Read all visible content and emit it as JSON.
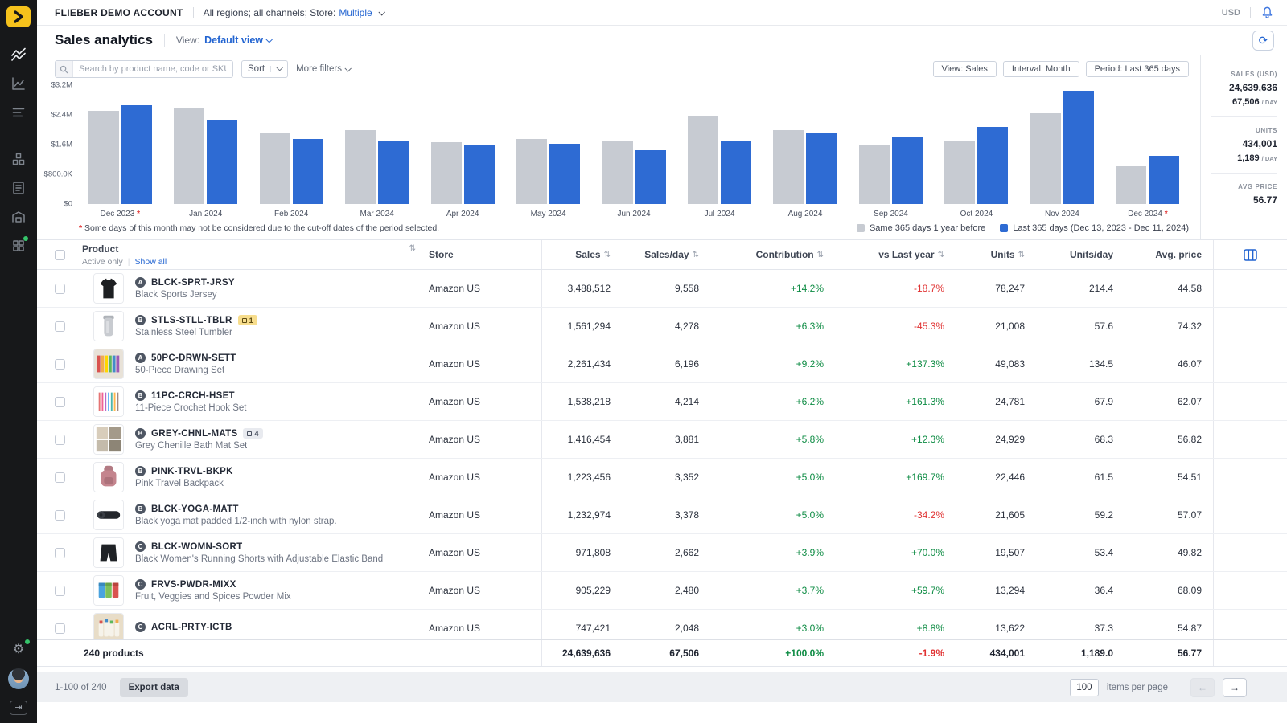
{
  "colors": {
    "accent": "#2264d1",
    "positive": "#0e8c44",
    "negative": "#e03131"
  },
  "topbar": {
    "account_name": "FLIEBER DEMO ACCOUNT",
    "scope_text": "All regions; all channels; Store:",
    "scope_value": "Multiple",
    "currency": "USD"
  },
  "titlebar": {
    "title": "Sales analytics",
    "view_label": "View:",
    "view_value": "Default view"
  },
  "filterbar": {
    "search_placeholder": "Search by product name, code or SKU",
    "sort_label": "Sort",
    "more_filters_label": "More filters",
    "chips": [
      "View: Sales",
      "Interval: Month",
      "Period: Last 365 days"
    ]
  },
  "chart_data": {
    "type": "bar",
    "categories": [
      "Dec 2023",
      "Jan 2024",
      "Feb 2024",
      "Mar 2024",
      "Apr 2024",
      "May 2024",
      "Jun 2024",
      "Jul 2024",
      "Aug 2024",
      "Sep 2024",
      "Oct 2024",
      "Nov 2024",
      "Dec 2024"
    ],
    "asterisk_categories": [
      "Dec 2023",
      "Dec 2024"
    ],
    "series": [
      {
        "name": "Same 365 days 1 year before",
        "color": "#c7cbd2",
        "values_musd": [
          2.5,
          2.6,
          1.92,
          1.98,
          1.66,
          1.75,
          1.71,
          2.35,
          1.98,
          1.6,
          1.69,
          2.45,
          1.02
        ]
      },
      {
        "name": "Last 365 days (Dec 13, 2023 - Dec 11, 2024)",
        "color": "#2e6bd3",
        "values_musd": [
          2.67,
          2.28,
          1.75,
          1.71,
          1.58,
          1.62,
          1.45,
          1.71,
          1.92,
          1.81,
          2.07,
          3.05,
          1.3
        ]
      }
    ],
    "y_ticks": [
      "$3.2M",
      "$2.4M",
      "$1.6M",
      "$800.0K",
      "$0"
    ],
    "ylim_musd": [
      0,
      3.2
    ],
    "legend_position": "bottom-right",
    "footnote": "Some days of this month may not be considered due to the cut-off dates of the period selected."
  },
  "stats": {
    "sales_label": "SALES (USD)",
    "sales_total": "24,639,636",
    "sales_per_day": "67,506",
    "per_day_suffix": "/ DAY",
    "units_label": "UNITS",
    "units_total": "434,001",
    "units_per_day": "1,189",
    "avg_price_label": "AVG PRICE",
    "avg_price": "56.77"
  },
  "table": {
    "headers": {
      "product": "Product",
      "store": "Store",
      "sales": "Sales",
      "sales_day": "Sales/day",
      "contribution": "Contribution",
      "vs_last_year": "vs Last year",
      "units": "Units",
      "units_day": "Units/day",
      "avg_price": "Avg. price"
    },
    "subheader": {
      "active_only": "Active only",
      "show_all": "Show all"
    },
    "rows": [
      {
        "grade": "A",
        "code": "BLCK-SPRT-JRSY",
        "desc": "Black Sports Jersey",
        "thumb": "shirt",
        "store": "Amazon US",
        "sales": "3,488,512",
        "sales_day": "9,558",
        "contribution": "+14.2%",
        "vs_last_year": "-18.7%",
        "units": "78,247",
        "units_day": "214.4",
        "avg_price": "44.58"
      },
      {
        "grade": "B",
        "code": "STLS-STLL-TBLR",
        "chip": {
          "style": "orange",
          "label": "1"
        },
        "desc": "Stainless Steel Tumbler",
        "thumb": "tumbler",
        "store": "Amazon US",
        "sales": "1,561,294",
        "sales_day": "4,278",
        "contribution": "+6.3%",
        "vs_last_year": "-45.3%",
        "units": "21,008",
        "units_day": "57.6",
        "avg_price": "74.32"
      },
      {
        "grade": "A",
        "code": "50PC-DRWN-SETT",
        "desc": "50-Piece Drawing Set",
        "thumb": "artset",
        "store": "Amazon US",
        "sales": "2,261,434",
        "sales_day": "6,196",
        "contribution": "+9.2%",
        "vs_last_year": "+137.3%",
        "units": "49,083",
        "units_day": "134.5",
        "avg_price": "46.07"
      },
      {
        "grade": "B",
        "code": "11PC-CRCH-HSET",
        "desc": "11-Piece Crochet Hook Set",
        "thumb": "hooks",
        "store": "Amazon US",
        "sales": "1,538,218",
        "sales_day": "4,214",
        "contribution": "+6.2%",
        "vs_last_year": "+161.3%",
        "units": "24,781",
        "units_day": "67.9",
        "avg_price": "62.07"
      },
      {
        "grade": "B",
        "code": "GREY-CHNL-MATS",
        "chip": {
          "style": "gray",
          "label": "4"
        },
        "desc": "Grey Chenille Bath Mat Set",
        "thumb": "mats",
        "store": "Amazon US",
        "sales": "1,416,454",
        "sales_day": "3,881",
        "contribution": "+5.8%",
        "vs_last_year": "+12.3%",
        "units": "24,929",
        "units_day": "68.3",
        "avg_price": "56.82"
      },
      {
        "grade": "B",
        "code": "PINK-TRVL-BKPK",
        "desc": "Pink Travel Backpack",
        "thumb": "backpack",
        "store": "Amazon US",
        "sales": "1,223,456",
        "sales_day": "3,352",
        "contribution": "+5.0%",
        "vs_last_year": "+169.7%",
        "units": "22,446",
        "units_day": "61.5",
        "avg_price": "54.51"
      },
      {
        "grade": "B",
        "code": "BLCK-YOGA-MATT",
        "desc": "Black yoga mat padded 1/2-inch with nylon strap.",
        "thumb": "yogamat",
        "store": "Amazon US",
        "sales": "1,232,974",
        "sales_day": "3,378",
        "contribution": "+5.0%",
        "vs_last_year": "-34.2%",
        "units": "21,605",
        "units_day": "59.2",
        "avg_price": "57.07"
      },
      {
        "grade": "C",
        "code": "BLCK-WOMN-SORT",
        "desc": "Black Women's Running Shorts with Adjustable Elastic Band",
        "thumb": "shorts",
        "store": "Amazon US",
        "sales": "971,808",
        "sales_day": "2,662",
        "contribution": "+3.9%",
        "vs_last_year": "+70.0%",
        "units": "19,507",
        "units_day": "53.4",
        "avg_price": "49.82"
      },
      {
        "grade": "C",
        "code": "FRVS-PWDR-MIXX",
        "desc": "Fruit, Veggies and Spices Powder Mix",
        "thumb": "cans",
        "store": "Amazon US",
        "sales": "905,229",
        "sales_day": "2,480",
        "contribution": "+3.7%",
        "vs_last_year": "+59.7%",
        "units": "13,294",
        "units_day": "36.4",
        "avg_price": "68.09"
      },
      {
        "grade": "C",
        "code": "ACRL-PRTY-ICTB",
        "desc": "",
        "thumb": "tubes",
        "store": "Amazon US",
        "sales": "747,421",
        "sales_day": "2,048",
        "contribution": "+3.0%",
        "vs_last_year": "+8.8%",
        "units": "13,622",
        "units_day": "37.3",
        "avg_price": "54.87"
      }
    ],
    "totals": {
      "label": "240 products",
      "sales": "24,639,636",
      "sales_day": "67,506",
      "contribution": "+100.0%",
      "vs_last_year": "-1.9%",
      "units": "434,001",
      "units_day": "1,189.0",
      "avg_price": "56.77"
    }
  },
  "pagination": {
    "range": "1-100 of 240",
    "export_label": "Export data",
    "page_size": "100",
    "per_page_label": "items per page"
  }
}
